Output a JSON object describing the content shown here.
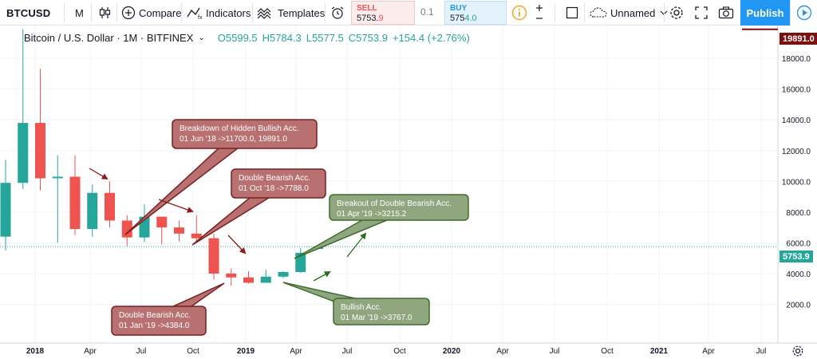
{
  "toolbar": {
    "symbol": "BTCUSD",
    "interval": "M",
    "compare_label": "Compare",
    "indicators_label": "Indicators",
    "templates_label": "Templates",
    "sell_label": "SELL",
    "sell_value_main": "5753.",
    "sell_value_tail": "9",
    "spread": "0.1",
    "buy_label": "BUY",
    "buy_value_main": "575",
    "buy_value_tail": "4.0",
    "layout_name": "Unnamed",
    "publish_label": "Publish"
  },
  "legend": {
    "title": "Bitcoin / U.S. Dollar · 1M · BITFINEX",
    "open": "O5599.5",
    "high": "H5784.3",
    "low": "L5577.5",
    "close": "C5753.9",
    "change": "+154.4 (+2.76%)"
  },
  "price_tags": {
    "high": "19891.0",
    "last": "5753.9"
  },
  "colors": {
    "up": "#26a69a",
    "down": "#ef5350",
    "high_line": "#7b0e0e",
    "annotation_red_fill": "#b87070",
    "annotation_red_border": "#7a1f1f",
    "annotation_green_fill": "#8fa67f",
    "annotation_green_border": "#3e6b2e",
    "arrow_red": "#8b1a1a",
    "arrow_green": "#2e6b1e"
  },
  "chart_data": {
    "type": "candlestick",
    "title": "Bitcoin / U.S. Dollar · 1M · BITFINEX",
    "y_ticks": [
      2000,
      4000,
      6000,
      8000,
      10000,
      12000,
      14000,
      16000,
      18000
    ],
    "y_tick_labels": [
      "2000.0",
      "4000.0",
      "6000.0",
      "8000.0",
      "10000.0",
      "12000.0",
      "14000.0",
      "16000.0",
      "18000.0"
    ],
    "ylim": [
      0,
      21000
    ],
    "x_tick_labels": [
      "2018",
      "Apr",
      "Jul",
      "Oct",
      "2019",
      "Apr",
      "Jul",
      "Oct",
      "2020",
      "Apr",
      "Jul",
      "Oct",
      "2021",
      "Apr",
      "Jul"
    ],
    "candles": [
      {
        "month": "2017-11",
        "o": 6400,
        "h": 11400,
        "l": 5500,
        "c": 9900
      },
      {
        "month": "2017-12",
        "o": 9900,
        "h": 19891,
        "l": 9500,
        "c": 13800
      },
      {
        "month": "2018-01",
        "o": 13800,
        "h": 17300,
        "l": 9400,
        "c": 10200
      },
      {
        "month": "2018-02",
        "o": 10200,
        "h": 11700,
        "l": 6000,
        "c": 10300
      },
      {
        "month": "2018-03",
        "o": 10300,
        "h": 11700,
        "l": 6500,
        "c": 6900
      },
      {
        "month": "2018-04",
        "o": 6900,
        "h": 9800,
        "l": 6400,
        "c": 9250
      },
      {
        "month": "2018-05",
        "o": 9250,
        "h": 10000,
        "l": 7000,
        "c": 7450
      },
      {
        "month": "2018-06",
        "o": 7450,
        "h": 7800,
        "l": 5800,
        "c": 6350
      },
      {
        "month": "2018-07",
        "o": 6350,
        "h": 8500,
        "l": 6050,
        "c": 7700
      },
      {
        "month": "2018-08",
        "o": 7700,
        "h": 7700,
        "l": 5880,
        "c": 7000
      },
      {
        "month": "2018-09",
        "o": 7000,
        "h": 7450,
        "l": 6100,
        "c": 6600
      },
      {
        "month": "2018-10",
        "o": 6600,
        "h": 7800,
        "l": 6100,
        "c": 6300
      },
      {
        "month": "2018-11",
        "o": 6300,
        "h": 6600,
        "l": 3600,
        "c": 4000
      },
      {
        "month": "2018-12",
        "o": 4000,
        "h": 4350,
        "l": 3200,
        "c": 3750
      },
      {
        "month": "2019-01",
        "o": 3750,
        "h": 4150,
        "l": 3350,
        "c": 3400
      },
      {
        "month": "2019-02",
        "o": 3400,
        "h": 4250,
        "l": 3400,
        "c": 3800
      },
      {
        "month": "2019-03",
        "o": 3800,
        "h": 4150,
        "l": 3700,
        "c": 4100
      },
      {
        "month": "2019-04",
        "o": 4100,
        "h": 5650,
        "l": 4050,
        "c": 5350
      },
      {
        "month": "2019-05",
        "o": 5599.5,
        "h": 5784.3,
        "l": 5577.5,
        "c": 5753.9
      }
    ],
    "annotations": [
      {
        "kind": "red",
        "line1": "Breakdown of Hidden Bullish Acc.",
        "line2": "01 Jun '18 ->11700.0, 19891.0"
      },
      {
        "kind": "red",
        "line1": "Double Bearish Acc.",
        "line2": "01 Oct '18 ->7788.0"
      },
      {
        "kind": "red",
        "line1": "Double Bearish Acc.",
        "line2": "01 Jan '19 ->4384.0"
      },
      {
        "kind": "green",
        "line1": "Breakout of Double Bearish Acc.",
        "line2": "01 Apr '19 ->3215.2"
      },
      {
        "kind": "green",
        "line1": "Bullish Acc.",
        "line2": "01 Mar '19 ->3767.0"
      }
    ]
  }
}
